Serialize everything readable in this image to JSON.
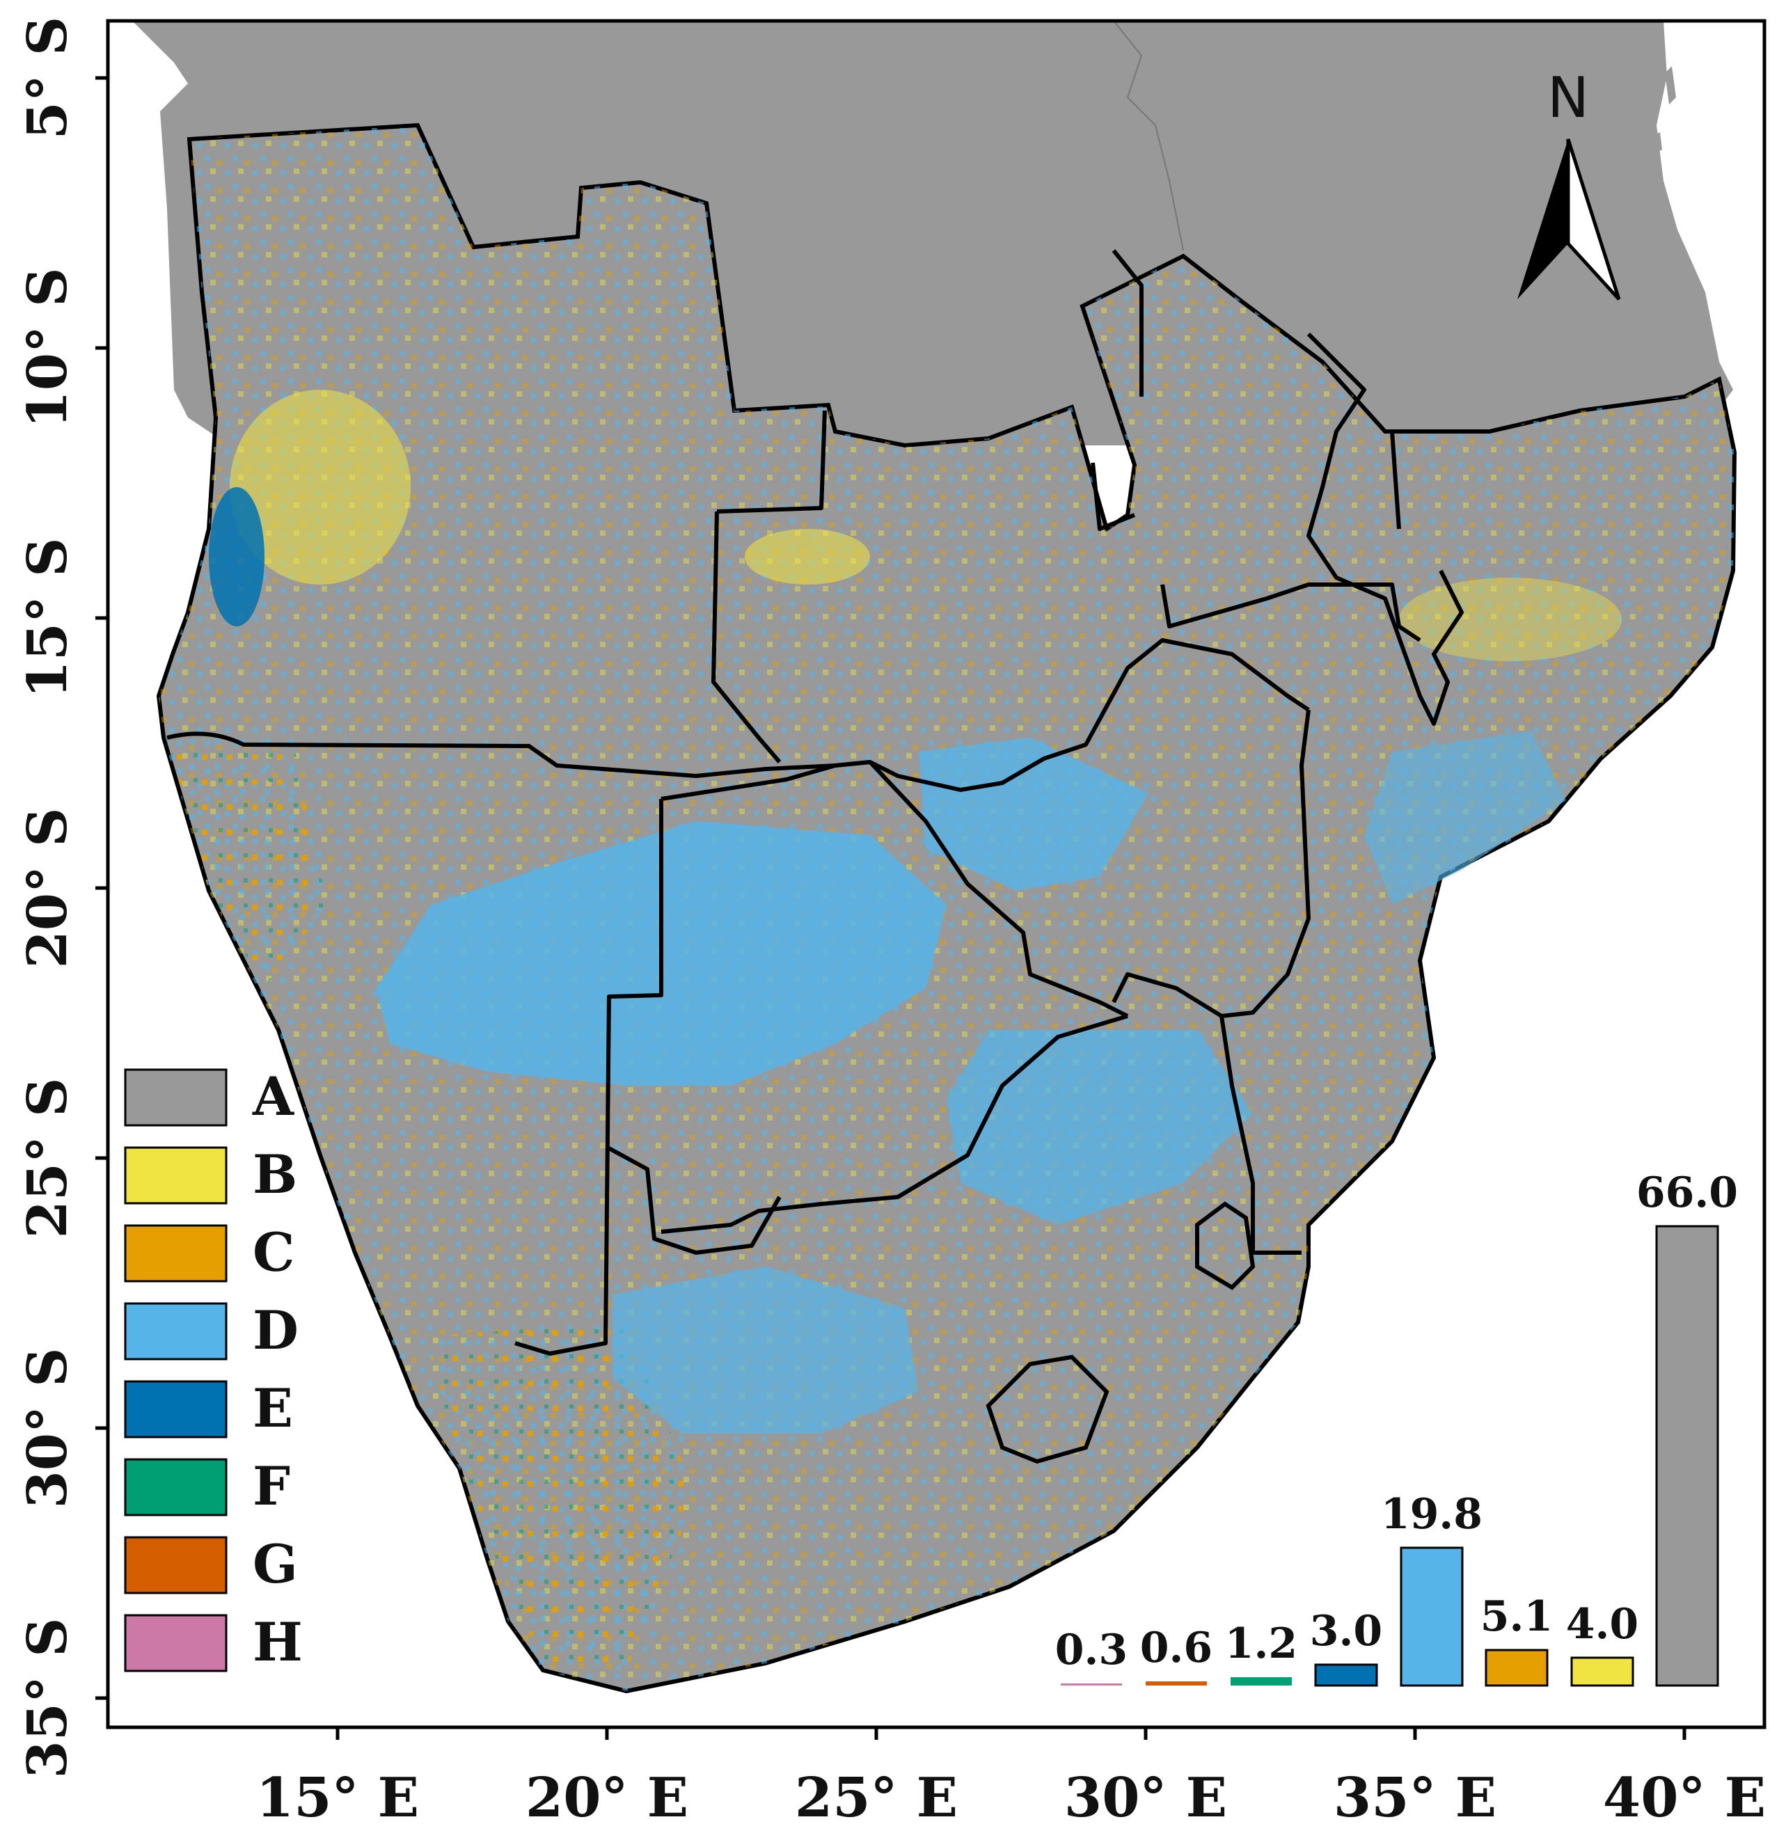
{
  "axes": {
    "y_ticks": [
      "5° S",
      "10° S",
      "15° S",
      "20° S",
      "25° S",
      "30° S",
      "35° S"
    ],
    "x_ticks": [
      "15° E",
      "20° E",
      "25° E",
      "30° E",
      "35° E",
      "40° E"
    ]
  },
  "north_arrow": {
    "label": "N",
    "icon": "north-arrow-icon"
  },
  "legend": {
    "items": [
      {
        "key": "A",
        "color": "#999999"
      },
      {
        "key": "B",
        "color": "#F0E442"
      },
      {
        "key": "C",
        "color": "#E69F00"
      },
      {
        "key": "D",
        "color": "#56B4E9"
      },
      {
        "key": "E",
        "color": "#0072B2"
      },
      {
        "key": "F",
        "color": "#009E73"
      },
      {
        "key": "G",
        "color": "#D55E00"
      },
      {
        "key": "H",
        "color": "#CC79A7"
      }
    ]
  },
  "chart_data": {
    "type": "bar",
    "title": "",
    "categories": [
      "H",
      "G",
      "F",
      "E",
      "D",
      "C",
      "B",
      "A"
    ],
    "values": [
      0.3,
      0.6,
      1.2,
      3.0,
      19.8,
      5.1,
      4.0,
      66.0
    ],
    "value_labels": [
      "0.3",
      "0.6",
      "1.2",
      "3.0",
      "19.8",
      "5.1",
      "4.0",
      "66.0"
    ],
    "colors": [
      "#CC79A7",
      "#D55E00",
      "#009E73",
      "#0072B2",
      "#56B4E9",
      "#E69F00",
      "#F0E442",
      "#999999"
    ],
    "ylim": [
      0,
      66.0
    ]
  }
}
